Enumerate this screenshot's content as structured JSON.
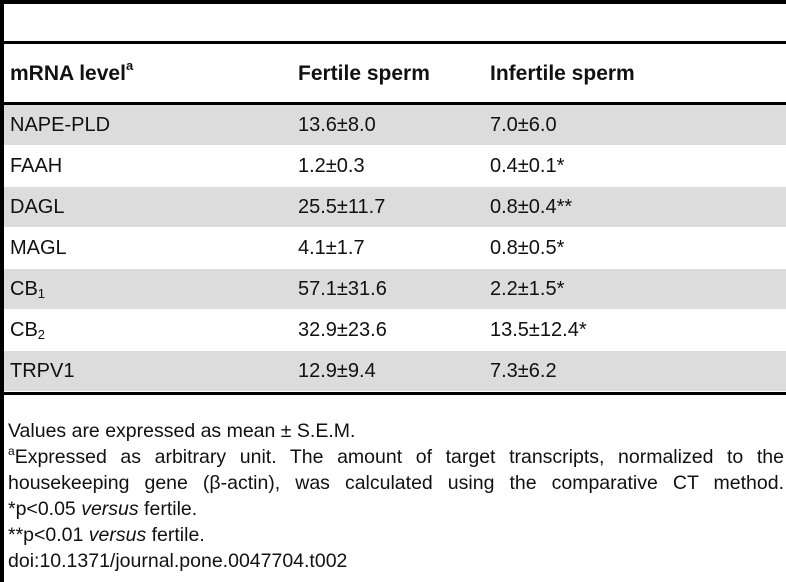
{
  "table": {
    "headers": {
      "col1": "mRNA level",
      "col1_sup": "a",
      "col2": "Fertile sperm",
      "col3": "Infertile sperm"
    },
    "rows": [
      {
        "gene": "NAPE-PLD",
        "sub": "",
        "fertile": "13.6±8.0",
        "infertile": "7.0±6.0"
      },
      {
        "gene": "FAAH",
        "sub": "",
        "fertile": "1.2±0.3",
        "infertile": "0.4±0.1*"
      },
      {
        "gene": "DAGL",
        "sub": "",
        "fertile": "25.5±11.7",
        "infertile": "0.8±0.4**"
      },
      {
        "gene": "MAGL",
        "sub": "",
        "fertile": "4.1±1.7",
        "infertile": "0.8±0.5*"
      },
      {
        "gene": "CB",
        "sub": "1",
        "fertile": "57.1±31.6",
        "infertile": "2.2±1.5*"
      },
      {
        "gene": "CB",
        "sub": "2",
        "fertile": "32.9±23.6",
        "infertile": "13.5±12.4*"
      },
      {
        "gene": "TRPV1",
        "sub": "",
        "fertile": "12.9±9.4",
        "infertile": "7.3±6.2"
      }
    ]
  },
  "footnotes": {
    "values_note": "Values are expressed as mean ± S.E.M.",
    "a_marker": "a",
    "a_text": "Expressed as arbitrary unit. The amount of target transcripts, normalized to the housekeeping gene (β-actin), was calculated using the comparative CT method.",
    "p05_prefix": "*p<0.05 ",
    "p05_italic": "versus",
    "p05_suffix": " fertile.",
    "p01_prefix": "**p<0.01 ",
    "p01_italic": "versus",
    "p01_suffix": " fertile.",
    "doi": "doi:10.1371/journal.pone.0047704.t002"
  },
  "colors": {
    "shaded_row": "#dcdcdc",
    "rule": "#000000"
  }
}
